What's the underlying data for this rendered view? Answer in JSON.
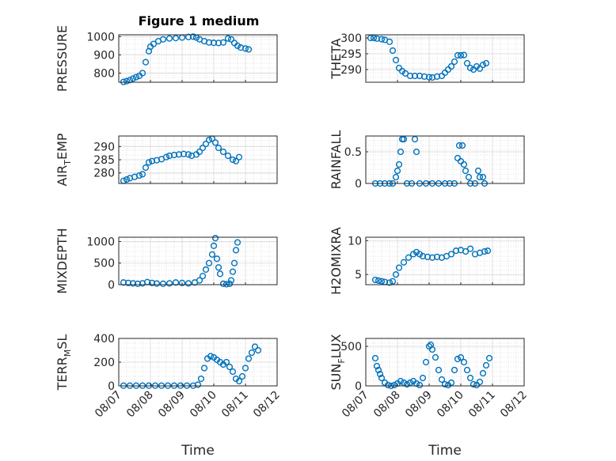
{
  "figure_title": "Figure 1 medium",
  "marker_color": "#0072BD",
  "chart_data": [
    {
      "type": "scatter",
      "title": "Figure 1 medium",
      "ylabel": "PRESSURE",
      "xlabel": "",
      "xlim": [
        0,
        5
      ],
      "ylim": [
        750,
        1010
      ],
      "yticks": [
        {
          "v": 800,
          "label": "800"
        },
        {
          "v": 900,
          "label": "900"
        },
        {
          "v": 1000,
          "label": "1000"
        }
      ],
      "xticks": [
        {
          "v": 0,
          "label": ""
        },
        {
          "v": 1,
          "label": ""
        },
        {
          "v": 2,
          "label": ""
        },
        {
          "v": 3,
          "label": ""
        },
        {
          "v": 4,
          "label": ""
        },
        {
          "v": 5,
          "label": ""
        }
      ],
      "series_points": [
        [
          0.15,
          752
        ],
        [
          0.25,
          756
        ],
        [
          0.35,
          762
        ],
        [
          0.45,
          770
        ],
        [
          0.55,
          778
        ],
        [
          0.65,
          785
        ],
        [
          0.75,
          800
        ],
        [
          0.85,
          860
        ],
        [
          0.95,
          920
        ],
        [
          1.0,
          945
        ],
        [
          1.1,
          960
        ],
        [
          1.25,
          975
        ],
        [
          1.4,
          985
        ],
        [
          1.6,
          990
        ],
        [
          1.8,
          992
        ],
        [
          2.0,
          995
        ],
        [
          2.2,
          998
        ],
        [
          2.35,
          1000
        ],
        [
          2.45,
          995
        ],
        [
          2.55,
          985
        ],
        [
          2.7,
          975
        ],
        [
          2.85,
          968
        ],
        [
          3.0,
          966
        ],
        [
          3.15,
          965
        ],
        [
          3.3,
          968
        ],
        [
          3.45,
          990
        ],
        [
          3.55,
          985
        ],
        [
          3.65,
          965
        ],
        [
          3.75,
          950
        ],
        [
          3.85,
          940
        ],
        [
          4.0,
          935
        ],
        [
          4.1,
          930
        ]
      ]
    },
    {
      "type": "scatter",
      "title": "",
      "ylabel": "THETA",
      "xlabel": "",
      "xlim": [
        0,
        5
      ],
      "ylim": [
        286,
        301
      ],
      "yticks": [
        {
          "v": 290,
          "label": "290"
        },
        {
          "v": 295,
          "label": "295"
        },
        {
          "v": 300,
          "label": "300"
        }
      ],
      "xticks": [
        {
          "v": 0,
          "label": ""
        },
        {
          "v": 1,
          "label": ""
        },
        {
          "v": 2,
          "label": ""
        },
        {
          "v": 3,
          "label": ""
        },
        {
          "v": 4,
          "label": ""
        },
        {
          "v": 5,
          "label": ""
        }
      ],
      "series_points": [
        [
          0.15,
          300
        ],
        [
          0.25,
          300
        ],
        [
          0.35,
          299.8
        ],
        [
          0.5,
          299.6
        ],
        [
          0.6,
          299.4
        ],
        [
          0.75,
          298.8
        ],
        [
          0.85,
          296
        ],
        [
          0.95,
          293
        ],
        [
          1.05,
          290.5
        ],
        [
          1.15,
          289.5
        ],
        [
          1.25,
          288.8
        ],
        [
          1.4,
          288
        ],
        [
          1.55,
          288
        ],
        [
          1.7,
          288
        ],
        [
          1.85,
          287.8
        ],
        [
          2.0,
          287.6
        ],
        [
          2.1,
          287.5
        ],
        [
          2.25,
          287.8
        ],
        [
          2.4,
          288
        ],
        [
          2.5,
          289
        ],
        [
          2.6,
          290
        ],
        [
          2.7,
          291
        ],
        [
          2.8,
          292.5
        ],
        [
          2.9,
          294.5
        ],
        [
          3.0,
          294.5
        ],
        [
          3.1,
          294.6
        ],
        [
          3.2,
          292
        ],
        [
          3.3,
          290.5
        ],
        [
          3.4,
          290
        ],
        [
          3.5,
          291
        ],
        [
          3.6,
          290.3
        ],
        [
          3.7,
          291.5
        ],
        [
          3.8,
          292
        ]
      ]
    },
    {
      "type": "scatter",
      "title": "",
      "ylabel": "AIR_TEMP",
      "xlabel": "",
      "xlim": [
        0,
        5
      ],
      "ylim": [
        276,
        294
      ],
      "yticks": [
        {
          "v": 280,
          "label": "280"
        },
        {
          "v": 285,
          "label": "285"
        },
        {
          "v": 290,
          "label": "290"
        }
      ],
      "xticks": [
        {
          "v": 0,
          "label": ""
        },
        {
          "v": 1,
          "label": ""
        },
        {
          "v": 2,
          "label": ""
        },
        {
          "v": 3,
          "label": ""
        },
        {
          "v": 4,
          "label": ""
        },
        {
          "v": 5,
          "label": ""
        }
      ],
      "series_points": [
        [
          0.15,
          277
        ],
        [
          0.25,
          277.5
        ],
        [
          0.35,
          278
        ],
        [
          0.5,
          278.5
        ],
        [
          0.65,
          279
        ],
        [
          0.75,
          279.5
        ],
        [
          0.85,
          282
        ],
        [
          0.95,
          284
        ],
        [
          1.05,
          284.5
        ],
        [
          1.2,
          284.8
        ],
        [
          1.35,
          285.2
        ],
        [
          1.5,
          286
        ],
        [
          1.6,
          286.5
        ],
        [
          1.75,
          286.8
        ],
        [
          1.9,
          287
        ],
        [
          2.05,
          287.2
        ],
        [
          2.2,
          287
        ],
        [
          2.3,
          286.5
        ],
        [
          2.45,
          287
        ],
        [
          2.55,
          288
        ],
        [
          2.65,
          289.5
        ],
        [
          2.75,
          291
        ],
        [
          2.85,
          292.5
        ],
        [
          2.95,
          293
        ],
        [
          3.05,
          291.5
        ],
        [
          3.15,
          289.5
        ],
        [
          3.3,
          288
        ],
        [
          3.45,
          286.5
        ],
        [
          3.6,
          285
        ],
        [
          3.7,
          284.5
        ],
        [
          3.8,
          286
        ]
      ]
    },
    {
      "type": "scatter",
      "title": "",
      "ylabel": "RAINFALL",
      "xlabel": "",
      "xlim": [
        0,
        5
      ],
      "ylim": [
        0,
        0.75
      ],
      "yticks": [
        {
          "v": 0,
          "label": "0"
        },
        {
          "v": 0.5,
          "label": "0.5"
        }
      ],
      "xticks": [
        {
          "v": 0,
          "label": ""
        },
        {
          "v": 1,
          "label": ""
        },
        {
          "v": 2,
          "label": ""
        },
        {
          "v": 3,
          "label": ""
        },
        {
          "v": 4,
          "label": ""
        },
        {
          "v": 5,
          "label": ""
        }
      ],
      "series_points": [
        [
          0.3,
          0
        ],
        [
          0.45,
          0
        ],
        [
          0.6,
          0
        ],
        [
          0.75,
          0
        ],
        [
          0.85,
          0
        ],
        [
          0.95,
          0.1
        ],
        [
          1.0,
          0.2
        ],
        [
          1.05,
          0.3
        ],
        [
          1.1,
          0.5
        ],
        [
          1.15,
          0.7
        ],
        [
          1.2,
          0.7
        ],
        [
          1.3,
          0
        ],
        [
          1.45,
          0
        ],
        [
          1.55,
          0.7
        ],
        [
          1.6,
          0.5
        ],
        [
          1.7,
          0
        ],
        [
          1.9,
          0
        ],
        [
          2.1,
          0
        ],
        [
          2.3,
          0
        ],
        [
          2.5,
          0
        ],
        [
          2.65,
          0
        ],
        [
          2.8,
          0
        ],
        [
          2.9,
          0.4
        ],
        [
          2.95,
          0.6
        ],
        [
          3.0,
          0.35
        ],
        [
          3.05,
          0.6
        ],
        [
          3.1,
          0.3
        ],
        [
          3.15,
          0.2
        ],
        [
          3.25,
          0.1
        ],
        [
          3.3,
          0
        ],
        [
          3.45,
          0
        ],
        [
          3.55,
          0.2
        ],
        [
          3.6,
          0.1
        ],
        [
          3.7,
          0.1
        ],
        [
          3.75,
          0
        ]
      ]
    },
    {
      "type": "scatter",
      "title": "",
      "ylabel": "MIXDEPTH",
      "xlabel": "",
      "xlim": [
        0,
        5
      ],
      "ylim": [
        0,
        1100
      ],
      "yticks": [
        {
          "v": 0,
          "label": "0"
        },
        {
          "v": 500,
          "label": "500"
        },
        {
          "v": 1000,
          "label": "1000"
        }
      ],
      "xticks": [
        {
          "v": 0,
          "label": ""
        },
        {
          "v": 1,
          "label": ""
        },
        {
          "v": 2,
          "label": ""
        },
        {
          "v": 3,
          "label": ""
        },
        {
          "v": 4,
          "label": ""
        },
        {
          "v": 5,
          "label": ""
        }
      ],
      "series_points": [
        [
          0.15,
          50
        ],
        [
          0.3,
          40
        ],
        [
          0.45,
          30
        ],
        [
          0.6,
          20
        ],
        [
          0.75,
          30
        ],
        [
          0.9,
          60
        ],
        [
          1.05,
          40
        ],
        [
          1.2,
          25
        ],
        [
          1.4,
          20
        ],
        [
          1.6,
          30
        ],
        [
          1.8,
          50
        ],
        [
          2.0,
          40
        ],
        [
          2.2,
          30
        ],
        [
          2.4,
          50
        ],
        [
          2.55,
          100
        ],
        [
          2.65,
          200
        ],
        [
          2.75,
          350
        ],
        [
          2.85,
          500
        ],
        [
          2.95,
          700
        ],
        [
          3.0,
          900
        ],
        [
          3.05,
          1080
        ],
        [
          3.1,
          600
        ],
        [
          3.15,
          400
        ],
        [
          3.2,
          250
        ],
        [
          3.3,
          20
        ],
        [
          3.4,
          10
        ],
        [
          3.5,
          20
        ],
        [
          3.55,
          100
        ],
        [
          3.6,
          300
        ],
        [
          3.65,
          500
        ],
        [
          3.7,
          800
        ],
        [
          3.75,
          980
        ]
      ]
    },
    {
      "type": "scatter",
      "title": "",
      "ylabel": "H2OMIXRA",
      "xlabel": "",
      "xlim": [
        0,
        5
      ],
      "ylim": [
        3.5,
        10.5
      ],
      "yticks": [
        {
          "v": 5,
          "label": "5"
        },
        {
          "v": 10,
          "label": "10"
        }
      ],
      "xticks": [
        {
          "v": 0,
          "label": ""
        },
        {
          "v": 1,
          "label": ""
        },
        {
          "v": 2,
          "label": ""
        },
        {
          "v": 3,
          "label": ""
        },
        {
          "v": 4,
          "label": ""
        },
        {
          "v": 5,
          "label": ""
        }
      ],
      "series_points": [
        [
          0.3,
          4.2
        ],
        [
          0.4,
          4.1
        ],
        [
          0.5,
          4.0
        ],
        [
          0.6,
          3.9
        ],
        [
          0.75,
          3.8
        ],
        [
          0.85,
          4.0
        ],
        [
          0.95,
          5.0
        ],
        [
          1.05,
          6.0
        ],
        [
          1.2,
          6.8
        ],
        [
          1.35,
          7.5
        ],
        [
          1.5,
          8.0
        ],
        [
          1.6,
          8.3
        ],
        [
          1.7,
          8.0
        ],
        [
          1.8,
          7.7
        ],
        [
          1.95,
          7.6
        ],
        [
          2.1,
          7.5
        ],
        [
          2.25,
          7.6
        ],
        [
          2.4,
          7.5
        ],
        [
          2.55,
          7.7
        ],
        [
          2.7,
          8.0
        ],
        [
          2.85,
          8.5
        ],
        [
          3.0,
          8.6
        ],
        [
          3.15,
          8.4
        ],
        [
          3.3,
          8.8
        ],
        [
          3.45,
          8.0
        ],
        [
          3.6,
          8.2
        ],
        [
          3.75,
          8.4
        ],
        [
          3.85,
          8.5
        ]
      ]
    },
    {
      "type": "scatter",
      "title": "",
      "ylabel": "TERR_MSL",
      "xlabel": "Time",
      "xlim": [
        0,
        5
      ],
      "ylim": [
        0,
        400
      ],
      "yticks": [
        {
          "v": 0,
          "label": "0"
        },
        {
          "v": 200,
          "label": "200"
        },
        {
          "v": 400,
          "label": "400"
        }
      ],
      "xticks": [
        {
          "v": 0,
          "label": "08/07"
        },
        {
          "v": 1,
          "label": "08/08"
        },
        {
          "v": 2,
          "label": "08/09"
        },
        {
          "v": 3,
          "label": "08/10"
        },
        {
          "v": 4,
          "label": "08/11"
        },
        {
          "v": 5,
          "label": "08/12"
        }
      ],
      "series_points": [
        [
          0.15,
          2
        ],
        [
          0.35,
          2
        ],
        [
          0.55,
          2
        ],
        [
          0.75,
          2
        ],
        [
          0.95,
          2
        ],
        [
          1.15,
          2
        ],
        [
          1.35,
          2
        ],
        [
          1.55,
          2
        ],
        [
          1.75,
          2
        ],
        [
          1.95,
          2
        ],
        [
          2.15,
          2
        ],
        [
          2.35,
          2
        ],
        [
          2.5,
          10
        ],
        [
          2.6,
          60
        ],
        [
          2.7,
          150
        ],
        [
          2.8,
          230
        ],
        [
          2.9,
          250
        ],
        [
          3.0,
          240
        ],
        [
          3.1,
          220
        ],
        [
          3.2,
          200
        ],
        [
          3.3,
          180
        ],
        [
          3.4,
          200
        ],
        [
          3.5,
          160
        ],
        [
          3.6,
          120
        ],
        [
          3.7,
          60
        ],
        [
          3.8,
          40
        ],
        [
          3.9,
          80
        ],
        [
          4.0,
          150
        ],
        [
          4.1,
          230
        ],
        [
          4.2,
          280
        ],
        [
          4.3,
          330
        ],
        [
          4.4,
          300
        ]
      ]
    },
    {
      "type": "scatter",
      "title": "",
      "ylabel": "SUN_FLUX",
      "xlabel": "Time",
      "xlim": [
        0,
        5
      ],
      "ylim": [
        0,
        600
      ],
      "yticks": [
        {
          "v": 0,
          "label": "0"
        },
        {
          "v": 500,
          "label": "500"
        }
      ],
      "xticks": [
        {
          "v": 0,
          "label": "08/07"
        },
        {
          "v": 1,
          "label": "08/08"
        },
        {
          "v": 2,
          "label": "08/09"
        },
        {
          "v": 3,
          "label": "08/10"
        },
        {
          "v": 4,
          "label": "08/11"
        },
        {
          "v": 5,
          "label": "08/12"
        }
      ],
      "series_points": [
        [
          0.3,
          350
        ],
        [
          0.35,
          250
        ],
        [
          0.4,
          200
        ],
        [
          0.45,
          150
        ],
        [
          0.5,
          100
        ],
        [
          0.6,
          40
        ],
        [
          0.7,
          10
        ],
        [
          0.8,
          0
        ],
        [
          0.9,
          10
        ],
        [
          1.0,
          30
        ],
        [
          1.1,
          60
        ],
        [
          1.2,
          40
        ],
        [
          1.3,
          20
        ],
        [
          1.4,
          40
        ],
        [
          1.5,
          60
        ],
        [
          1.6,
          30
        ],
        [
          1.7,
          10
        ],
        [
          1.8,
          100
        ],
        [
          1.9,
          300
        ],
        [
          2.0,
          500
        ],
        [
          2.05,
          520
        ],
        [
          2.1,
          460
        ],
        [
          2.2,
          360
        ],
        [
          2.3,
          200
        ],
        [
          2.4,
          80
        ],
        [
          2.5,
          20
        ],
        [
          2.6,
          10
        ],
        [
          2.7,
          40
        ],
        [
          2.8,
          200
        ],
        [
          2.9,
          340
        ],
        [
          3.0,
          360
        ],
        [
          3.1,
          300
        ],
        [
          3.2,
          200
        ],
        [
          3.3,
          100
        ],
        [
          3.4,
          20
        ],
        [
          3.5,
          10
        ],
        [
          3.6,
          50
        ],
        [
          3.7,
          160
        ],
        [
          3.8,
          260
        ],
        [
          3.9,
          350
        ]
      ]
    }
  ]
}
